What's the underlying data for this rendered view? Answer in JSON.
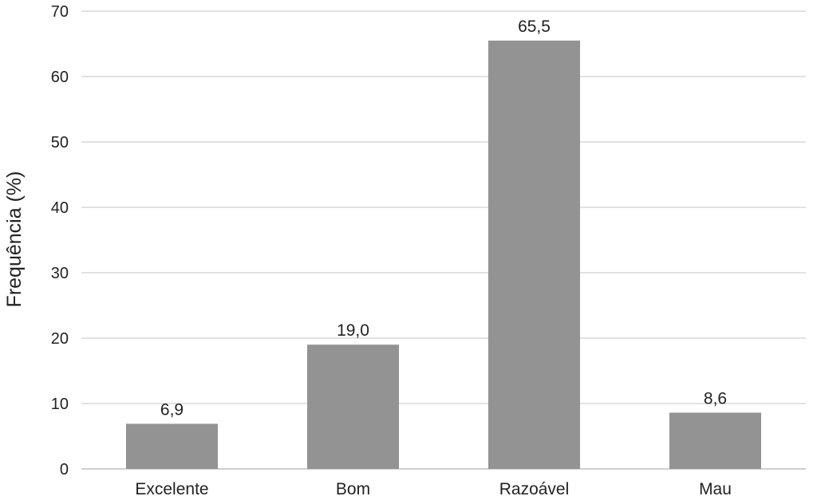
{
  "chart_data": {
    "type": "bar",
    "categories": [
      "Excelente",
      "Bom",
      "Razoável",
      "Mau"
    ],
    "values": [
      6.9,
      19.0,
      65.5,
      8.6
    ],
    "data_labels": [
      "6,9",
      "19,0",
      "65,5",
      "8,6"
    ],
    "ylabel": "Frequência (%)",
    "ylim": [
      0,
      70
    ],
    "yticks": [
      0,
      10,
      20,
      30,
      40,
      50,
      60,
      70
    ],
    "grid": true,
    "bar_color": "#939393",
    "legend": "none"
  }
}
